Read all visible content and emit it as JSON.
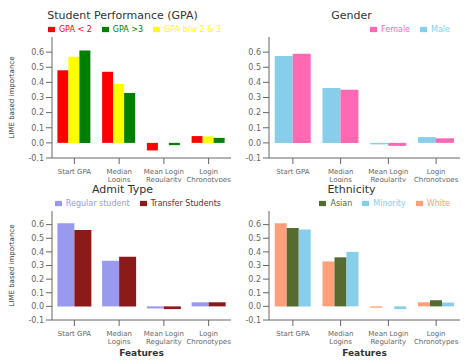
{
  "chart_data": [
    {
      "type": "bar",
      "title": "Student Performance (GPA)",
      "categories": [
        "Start GPA",
        "Median\nLogins",
        "Mean Login\nRegularity",
        "Login\nChronotypes"
      ],
      "series": [
        {
          "name": "GPA < 2",
          "color": "#FF0000",
          "values": [
            0.48,
            0.47,
            -0.05,
            0.045
          ]
        },
        {
          "name": "GPA b/w 2 & 3",
          "color": "#FFFF00",
          "values": [
            0.57,
            0.39,
            0.0,
            0.043
          ]
        },
        {
          "name": "GPA >3",
          "color": "#008000",
          "values": [
            0.61,
            0.33,
            -0.015,
            0.033
          ]
        }
      ],
      "ylim": [
        -0.1,
        0.7
      ],
      "yticks": [
        -0.1,
        {
          "value": 0,
          "label": "0.0"
        },
        0.1,
        0.2,
        0.3,
        0.4,
        0.5,
        0.6
      ],
      "ylabel": "LIME based importance",
      "legend": "upper right",
      "grid": false
    },
    {
      "type": "bar",
      "title": "Gender",
      "categories": [
        "Start GPA",
        "Median\nLogins",
        "Mean Login\nRegularity",
        "Login\nChronotypes"
      ],
      "series": [
        {
          "name": "Male",
          "color": "#87CEEB",
          "values": [
            0.575,
            0.362,
            -0.01,
            0.038
          ]
        },
        {
          "name": "Female",
          "color": "#FF69B4",
          "values": [
            0.59,
            0.352,
            -0.02,
            0.03
          ]
        }
      ],
      "ylim": [
        -0.1,
        0.7
      ],
      "yticks": [
        -0.1,
        {
          "value": 0,
          "label": "0.0"
        },
        0.1,
        0.2,
        0.3,
        0.4,
        0.5,
        0.6
      ],
      "legend": "upper right",
      "grid": false
    },
    {
      "type": "bar",
      "title": "Admit Type",
      "categories": [
        "Start GPA",
        "Median\nLogins",
        "Mean Login\nRegularity",
        "Login\nChronotypes"
      ],
      "series": [
        {
          "name": "Regular student",
          "color": "#9999EE",
          "values": [
            0.61,
            0.335,
            -0.015,
            0.03
          ]
        },
        {
          "name": "Transfer Students",
          "color": "#8B1A1A",
          "values": [
            0.56,
            0.365,
            -0.02,
            0.03
          ]
        }
      ],
      "ylim": [
        -0.1,
        0.7
      ],
      "yticks": [
        -0.1,
        {
          "value": 0,
          "label": "0.0"
        },
        0.1,
        0.2,
        0.3,
        0.4,
        0.5,
        0.6
      ],
      "ylabel": "LIME based importance",
      "xlabel": "Features",
      "legend": "upper right",
      "grid": false
    },
    {
      "type": "bar",
      "title": "Ethnicity",
      "categories": [
        "Start GPA",
        "Median\nLogins",
        "Mean Login\nRegularity",
        "Login\nChronotypes"
      ],
      "series": [
        {
          "name": "White",
          "color": "#FFA07A",
          "values": [
            0.61,
            0.33,
            -0.01,
            0.03
          ]
        },
        {
          "name": "Asian",
          "color": "#556B2F",
          "values": [
            0.575,
            0.36,
            0.0,
            0.045
          ]
        },
        {
          "name": "Minority",
          "color": "#87CEEB",
          "values": [
            0.565,
            0.4,
            -0.02,
            0.028
          ]
        }
      ],
      "ylim": [
        -0.1,
        0.7
      ],
      "yticks": [
        -0.1,
        {
          "value": 0,
          "label": "0.0"
        },
        0.1,
        0.2,
        0.3,
        0.4,
        0.5,
        0.6
      ],
      "xlabel": "Features",
      "legend": "upper right",
      "grid": false
    }
  ]
}
